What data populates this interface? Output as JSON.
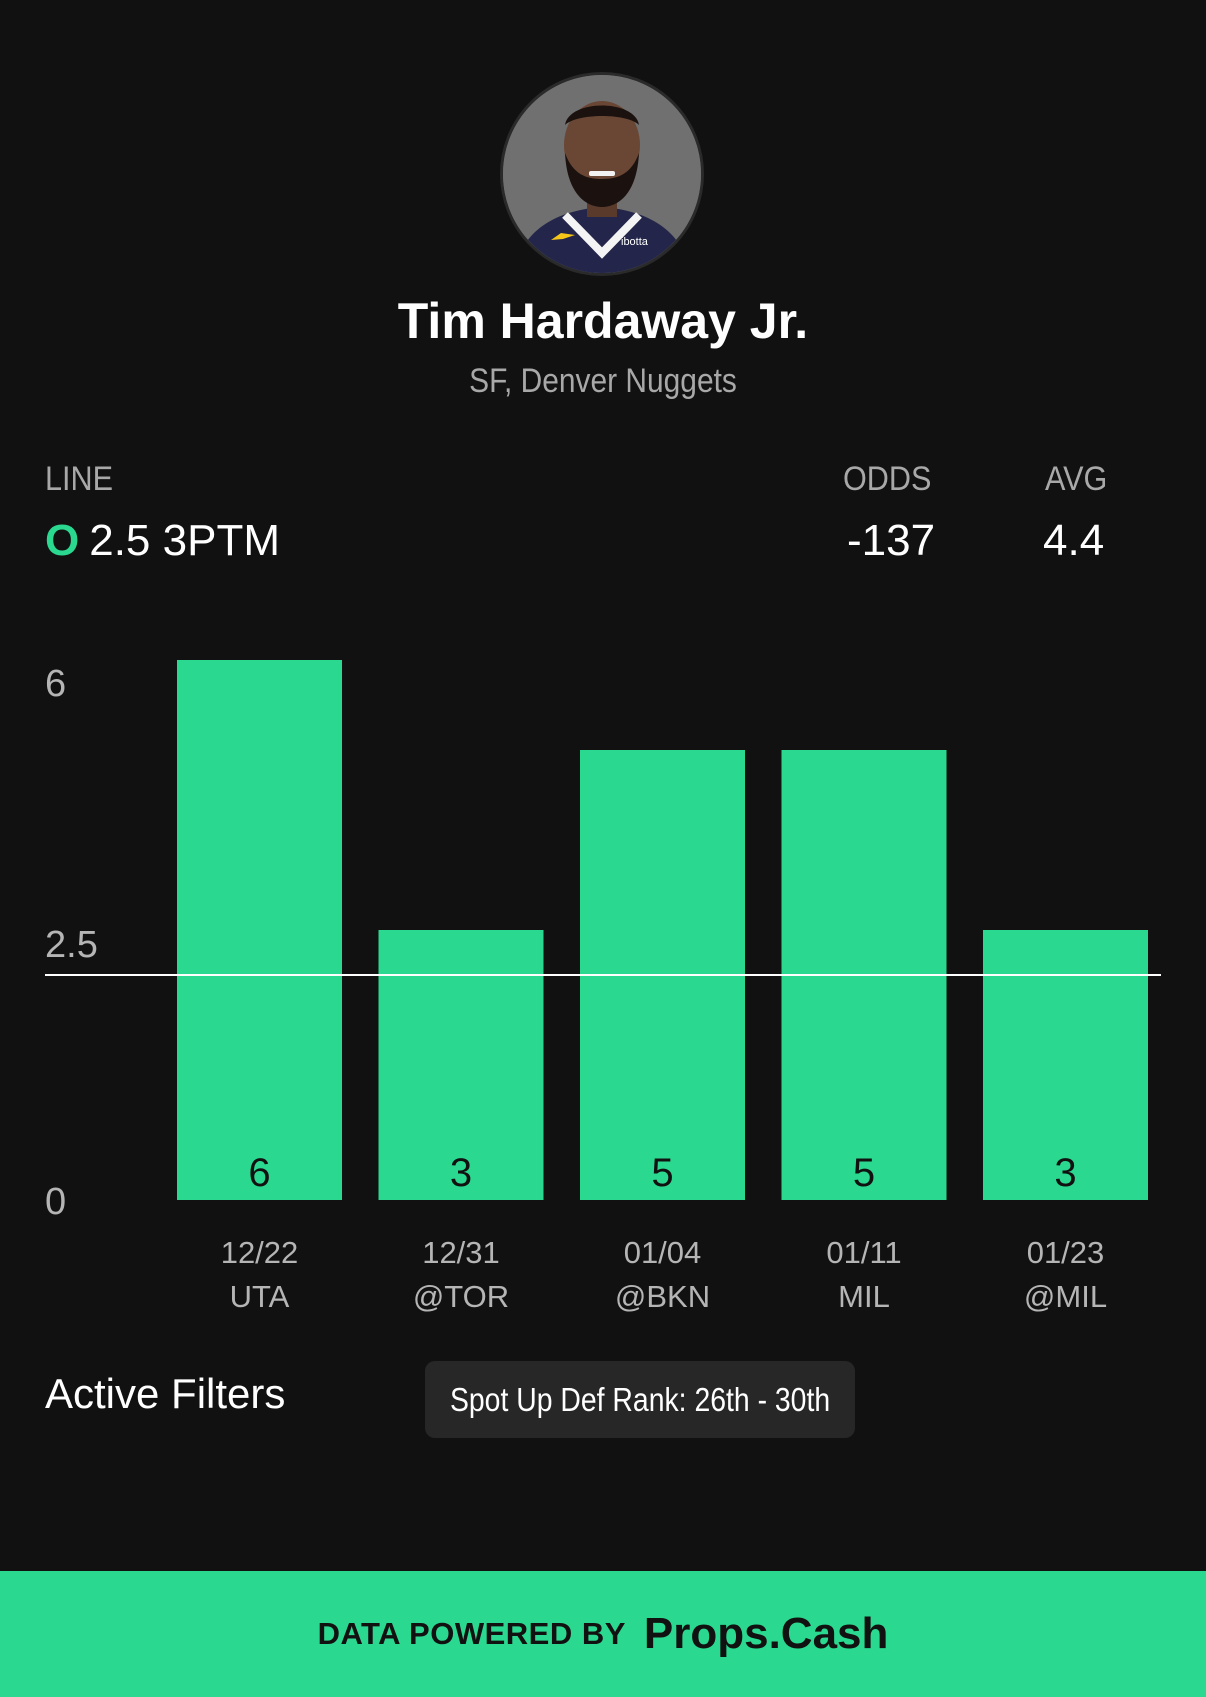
{
  "player": {
    "name": "Tim Hardaway Jr.",
    "subtitle": "SF, Denver Nuggets"
  },
  "stats": {
    "line_label": "LINE",
    "line_side": "O",
    "line_value": "2.5 3PTM",
    "odds_label": "ODDS",
    "odds_value": "-137",
    "avg_label": "AVG",
    "avg_value": "4.4"
  },
  "chart_data": {
    "type": "bar",
    "categories": [
      "12/22 UTA",
      "12/31 @TOR",
      "01/04 @BKN",
      "01/11 MIL",
      "01/23 @MIL"
    ],
    "dates": [
      "12/22",
      "12/31",
      "01/04",
      "01/11",
      "01/23"
    ],
    "opponents": [
      "UTA",
      "@TOR",
      "@BKN",
      "MIL",
      "@MIL"
    ],
    "values": [
      6,
      3,
      5,
      5,
      3
    ],
    "y_ticks": [
      "6",
      "2.5",
      "0"
    ],
    "reference_line": 2.5,
    "ylim": [
      0,
      6
    ],
    "bar_color": "#2ad98f",
    "title": "",
    "xlabel": "",
    "ylabel": ""
  },
  "filters": {
    "label": "Active Filters",
    "chips": [
      "Spot Up Def Rank: 26th - 30th"
    ]
  },
  "footer": {
    "prefix": "DATA POWERED BY",
    "brand": "Props.Cash"
  },
  "colors": {
    "accent": "#2ad98f",
    "background": "#111111",
    "muted_text": "#a8a8a8"
  }
}
